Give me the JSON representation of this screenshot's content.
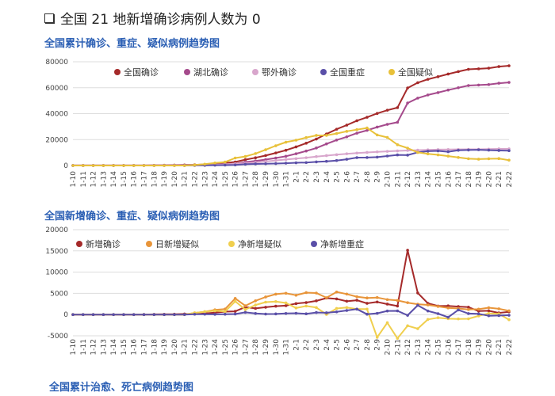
{
  "header": {
    "title": "全国 21 地新增确诊病例人数为 0"
  },
  "chart_data": [
    {
      "type": "line",
      "title": "全国累计确诊、重症、疑似病例趋势图",
      "ylim": [
        0,
        80000
      ],
      "yticks": [
        0,
        20000,
        40000,
        60000,
        80000
      ],
      "grid": true,
      "legend_position": "top",
      "categories": [
        "1-10",
        "1-11",
        "1-12",
        "1-13",
        "1-14",
        "1-15",
        "1-16",
        "1-17",
        "1-18",
        "1-19",
        "1-20",
        "1-21",
        "1-22",
        "1-23",
        "1-24",
        "1-25",
        "1-26",
        "1-27",
        "1-28",
        "1-29",
        "1-30",
        "1-31",
        "2-1",
        "2-2",
        "2-3",
        "2-4",
        "2-5",
        "2-6",
        "2-7",
        "2-8",
        "2-9",
        "2-10",
        "2-11",
        "2-12",
        "2-13",
        "2-14",
        "2-15",
        "2-16",
        "2-17",
        "2-18",
        "2-19",
        "2-20",
        "2-21",
        "2-22"
      ],
      "series": [
        {
          "name": "全国确诊",
          "color": "#a52a2a",
          "values": [
            41,
            41,
            41,
            41,
            41,
            41,
            45,
            62,
            121,
            198,
            291,
            440,
            571,
            830,
            1287,
            1975,
            2744,
            4515,
            5974,
            7711,
            9692,
            11791,
            14380,
            17205,
            20438,
            24324,
            28018,
            31161,
            34546,
            37198,
            40171,
            42638,
            44653,
            59804,
            63851,
            66492,
            68500,
            70548,
            72436,
            74185,
            74576,
            75077,
            76288,
            76936
          ]
        },
        {
          "name": "湖北确诊",
          "color": "#a54a8c",
          "values": [
            41,
            41,
            41,
            41,
            41,
            41,
            45,
            62,
            121,
            198,
            270,
            375,
            444,
            549,
            729,
            1052,
            1423,
            2714,
            3554,
            4586,
            5806,
            7153,
            9074,
            11177,
            13522,
            16678,
            19665,
            22112,
            24953,
            27100,
            29631,
            31728,
            33366,
            48206,
            51986,
            54406,
            56249,
            58182,
            59989,
            61682,
            62031,
            62442,
            63454,
            64084
          ]
        },
        {
          "name": "鄂外确诊",
          "color": "#d8a6cc",
          "values": [
            0,
            0,
            0,
            0,
            0,
            0,
            0,
            0,
            0,
            0,
            21,
            65,
            127,
            281,
            558,
            923,
            1321,
            1801,
            2420,
            3125,
            3886,
            4638,
            5306,
            6028,
            6916,
            7646,
            8353,
            9049,
            9593,
            10098,
            10540,
            10910,
            11287,
            11598,
            11865,
            12086,
            12251,
            12366,
            12447,
            12503,
            12545,
            12635,
            12834,
            12852
          ]
        },
        {
          "name": "全国重症",
          "color": "#5a4fa8",
          "values": [
            0,
            0,
            0,
            0,
            0,
            0,
            0,
            0,
            0,
            0,
            0,
            9,
            95,
            177,
            237,
            324,
            461,
            976,
            1239,
            1370,
            1527,
            1795,
            2110,
            2296,
            2788,
            3219,
            3859,
            4821,
            6101,
            6188,
            6484,
            7333,
            8204,
            8030,
            10204,
            11053,
            11272,
            10644,
            11741,
            11977,
            12136,
            11864,
            11633,
            11477
          ]
        },
        {
          "name": "全国疑似",
          "color": "#e8c13a",
          "values": [
            0,
            0,
            0,
            0,
            0,
            0,
            0,
            0,
            0,
            0,
            0,
            0,
            393,
            1072,
            1965,
            2684,
            5794,
            6973,
            9239,
            12167,
            15238,
            17988,
            19544,
            21558,
            23214,
            23260,
            24702,
            26359,
            27657,
            28942,
            23589,
            21675,
            16067,
            13435,
            10109,
            8969,
            8228,
            7264,
            6242,
            5248,
            4922,
            5206,
            5365,
            4148
          ]
        }
      ]
    },
    {
      "type": "line",
      "title": "全国新增确诊、重症、疑似病例趋势图",
      "ylim": [
        -5000,
        20000
      ],
      "yticks": [
        -5000,
        0,
        5000,
        10000,
        15000,
        20000
      ],
      "grid": true,
      "legend_position": "top",
      "categories": [
        "1-10",
        "1-11",
        "1-12",
        "1-13",
        "1-14",
        "1-15",
        "1-16",
        "1-17",
        "1-18",
        "1-19",
        "1-20",
        "1-21",
        "1-22",
        "1-23",
        "1-24",
        "1-25",
        "1-26",
        "1-27",
        "1-28",
        "1-29",
        "1-30",
        "1-31",
        "2-1",
        "2-2",
        "2-3",
        "2-4",
        "2-5",
        "2-6",
        "2-7",
        "2-8",
        "2-9",
        "2-10",
        "2-11",
        "2-12",
        "2-13",
        "2-14",
        "2-15",
        "2-16",
        "2-17",
        "2-18",
        "2-19",
        "2-20",
        "2-21",
        "2-22"
      ],
      "series": [
        {
          "name": "新增确诊",
          "color": "#a52a2a",
          "values": [
            0,
            0,
            0,
            0,
            0,
            0,
            4,
            17,
            59,
            77,
            93,
            149,
            131,
            259,
            444,
            688,
            769,
            1771,
            1459,
            1737,
            1981,
            2099,
            2590,
            2829,
            3235,
            3887,
            3694,
            3143,
            3385,
            2652,
            2973,
            2467,
            2015,
            15152,
            5090,
            2641,
            2009,
            2048,
            1886,
            1749,
            820,
            892,
            397,
            648
          ]
        },
        {
          "name": "日新增疑似",
          "color": "#e8953a",
          "values": [
            0,
            0,
            0,
            0,
            0,
            0,
            0,
            0,
            0,
            0,
            0,
            0,
            393,
            680,
            1118,
            1309,
            3806,
            2077,
            3248,
            4148,
            4812,
            5019,
            4562,
            5173,
            5072,
            3971,
            5328,
            4833,
            4214,
            3916,
            4008,
            3536,
            3342,
            2807,
            2450,
            2277,
            1918,
            1563,
            1432,
            1185,
            1277,
            1614,
            1361,
            882
          ]
        },
        {
          "name": "净新增疑似",
          "color": "#f0cf4e",
          "values": [
            0,
            0,
            0,
            0,
            0,
            0,
            0,
            0,
            0,
            0,
            0,
            0,
            393,
            679,
            893,
            719,
            3110,
            1179,
            2266,
            2928,
            3071,
            2750,
            1556,
            2014,
            1656,
            46,
            1442,
            1657,
            1298,
            1285,
            -5353,
            -1914,
            -5608,
            -2632,
            -3326,
            -1140,
            -741,
            -964,
            -1022,
            -994,
            -326,
            284,
            159,
            -1217
          ]
        },
        {
          "name": "净新增重症",
          "color": "#5a4fa8",
          "values": [
            0,
            0,
            0,
            0,
            0,
            0,
            0,
            0,
            0,
            0,
            0,
            9,
            86,
            82,
            60,
            87,
            137,
            515,
            263,
            131,
            157,
            268,
            315,
            186,
            492,
            431,
            640,
            962,
            1280,
            87,
            296,
            849,
            871,
            -174,
            2174,
            849,
            219,
            -628,
            1097,
            236,
            159,
            -272,
            -231,
            -156
          ]
        }
      ]
    },
    {
      "type": "line",
      "title": "全国累计治愈、死亡病例趋势图"
    }
  ]
}
